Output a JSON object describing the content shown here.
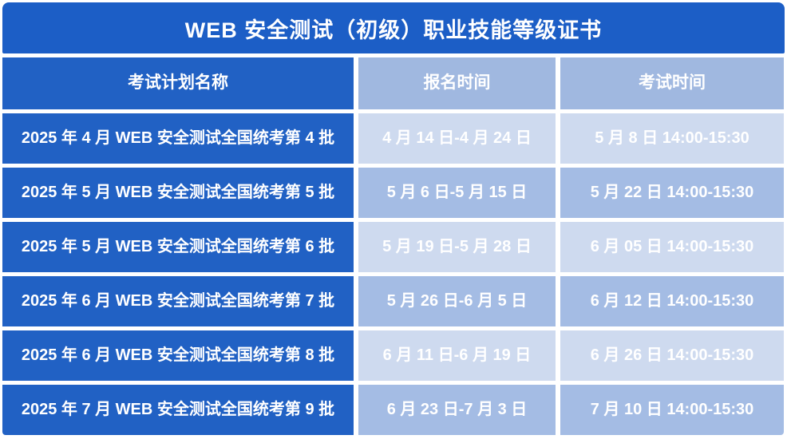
{
  "title": "WEB 安全测试（初级）职业技能等级证书",
  "table": {
    "headers": [
      "考试计划名称",
      "报名时间",
      "考试时间"
    ],
    "rows": [
      {
        "plan": "2025 年 4 月 WEB 安全测试全国统考第 4 批",
        "registration": "4 月 14 日-4 月 24 日",
        "exam": "5 月 8 日 14:00-15:30"
      },
      {
        "plan": "2025 年 5 月 WEB 安全测试全国统考第 5 批",
        "registration": "5 月 6 日-5 月 15 日",
        "exam": "5 月 22 日 14:00-15:30"
      },
      {
        "plan": "2025 年 5 月 WEB 安全测试全国统考第 6 批",
        "registration": "5 月 19 日-5 月 28 日",
        "exam": "6 月 05 日 14:00-15:30"
      },
      {
        "plan": "2025 年 6 月 WEB 安全测试全国统考第 7 批",
        "registration": "5 月 26 日-6 月 5 日",
        "exam": "6 月 12 日 14:00-15:30"
      },
      {
        "plan": "2025 年 6 月 WEB 安全测试全国统考第 8 批",
        "registration": "6 月 11 日-6 月 19 日",
        "exam": "6 月 26 日 14:00-15:30"
      },
      {
        "plan": "2025 年 7 月 WEB 安全测试全国统考第 9 批",
        "registration": "6 月 23 日-7 月 3 日",
        "exam": "7 月 10 日 14:00-15:30"
      }
    ]
  },
  "colors": {
    "title_bg": "#1C5EC6",
    "plan_col_bg": "#2161C4",
    "header_time_bg": "#A0B8E0",
    "row_light_bg": "#CEDAEF",
    "row_dark_bg": "#A4BCE4",
    "text": "#FFFFFF",
    "gap": "#FFFFFF"
  }
}
